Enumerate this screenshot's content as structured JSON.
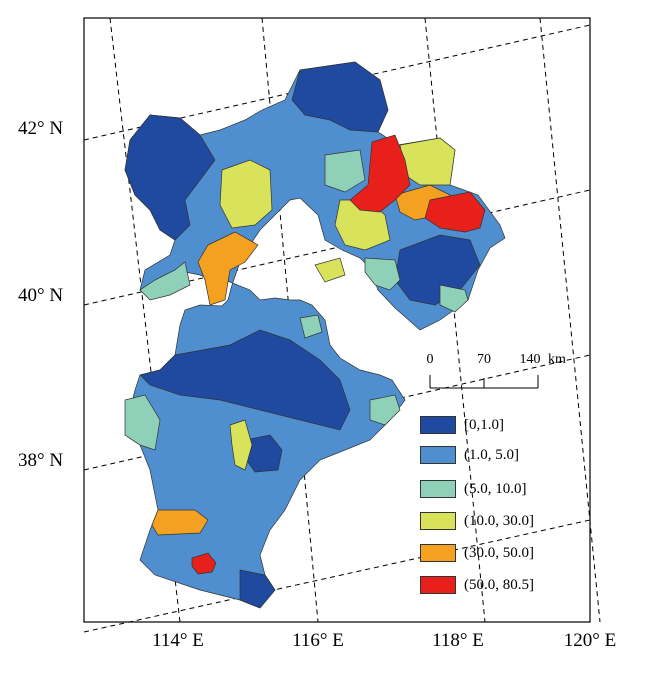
{
  "axes": {
    "lat_labels": [
      "42° N",
      "40° N",
      "38° N"
    ],
    "lon_labels": [
      "114° E",
      "116° E",
      "118° E",
      "120° E"
    ]
  },
  "scale_bar": {
    "ticks": [
      "0",
      "70",
      "140"
    ],
    "unit": "km"
  },
  "legend": {
    "items": [
      {
        "label": "[0,1.0]",
        "color": "#1f4aa0"
      },
      {
        "label": "(1.0, 5.0]",
        "color": "#4f8fd0"
      },
      {
        "label": "(5.0, 10.0]",
        "color": "#8fd0b8"
      },
      {
        "label": "(10.0, 30.0]",
        "color": "#d8e25a"
      },
      {
        "label": "(30.0, 50.0]",
        "color": "#f4a020"
      },
      {
        "label": "(50.0, 80.5]",
        "color": "#e8201c"
      }
    ]
  }
}
